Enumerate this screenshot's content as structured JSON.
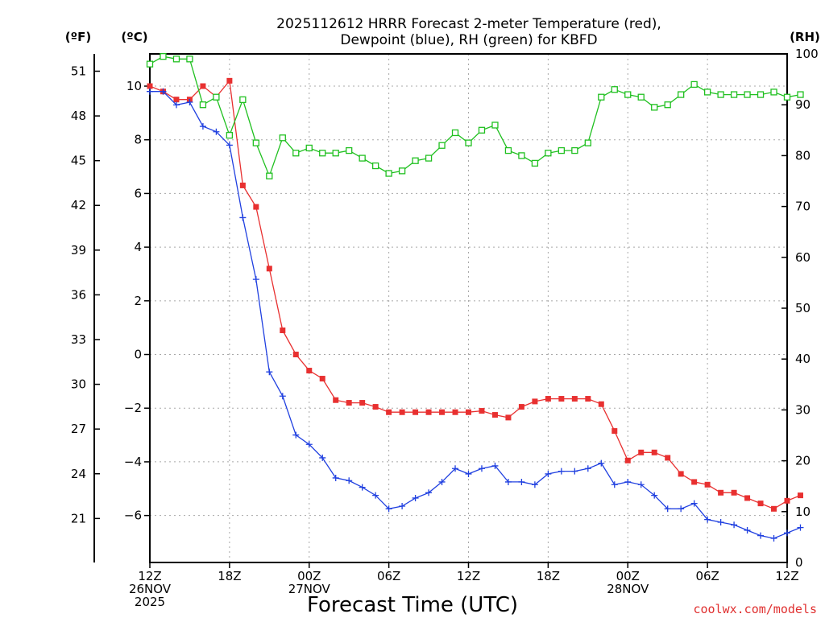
{
  "chart_data": {
    "type": "line",
    "title_line1": "2025112612 HRRR Forecast 2-meter Temperature (red),",
    "title_line2": "Dewpoint (blue), RH (green) for KBFD",
    "unit_f": "(ºF)",
    "unit_c": "(ºC)",
    "unit_rh": "(RH)",
    "xlabel": "Forecast Time (UTC)",
    "credit": "coolwx.com/models",
    "x_range_hours": [
      0,
      48
    ],
    "y_c_range": [
      -7.75,
      11.2
    ],
    "y_rh_range": [
      0,
      100
    ],
    "celsius_ticks": [
      10,
      8,
      6,
      4,
      2,
      0,
      -2,
      -4,
      -6
    ],
    "celsius_tick_labels": [
      "10",
      "8",
      "6",
      "4",
      "2",
      "0",
      "−2",
      "−4",
      "−6"
    ],
    "fahrenheit_ticks": [
      51,
      48,
      45,
      42,
      39,
      36,
      33,
      30,
      27,
      24,
      21
    ],
    "fahrenheit_tick_labels": [
      "51",
      "48",
      "45",
      "42",
      "39",
      "36",
      "33",
      "30",
      "27",
      "24",
      "21"
    ],
    "rh_ticks": [
      100,
      90,
      80,
      70,
      60,
      50,
      40,
      30,
      20,
      10,
      0
    ],
    "rh_tick_labels": [
      "100",
      "90",
      "80",
      "70",
      "60",
      "50",
      "40",
      "30",
      "20",
      "10",
      "0"
    ],
    "x_ticks": [
      {
        "hour": 0,
        "lines": [
          "12Z",
          "26NOV",
          "2025"
        ]
      },
      {
        "hour": 6,
        "lines": [
          "18Z"
        ]
      },
      {
        "hour": 12,
        "lines": [
          "00Z",
          "27NOV"
        ]
      },
      {
        "hour": 18,
        "lines": [
          "06Z"
        ]
      },
      {
        "hour": 24,
        "lines": [
          "12Z"
        ]
      },
      {
        "hour": 30,
        "lines": [
          "18Z"
        ]
      },
      {
        "hour": 36,
        "lines": [
          "00Z",
          "28NOV"
        ]
      },
      {
        "hour": 42,
        "lines": [
          "06Z"
        ]
      },
      {
        "hour": 48,
        "lines": [
          "12Z"
        ]
      }
    ],
    "series": [
      {
        "name": "Temperature",
        "axis": "celsius",
        "color": "#e83030",
        "marker": "filled-square",
        "values": [
          10.0,
          9.8,
          9.5,
          9.5,
          10.0,
          9.6,
          10.2,
          6.3,
          5.5,
          3.2,
          0.9,
          0.0,
          -0.6,
          -0.9,
          -1.7,
          -1.8,
          -1.8,
          -1.95,
          -2.15,
          -2.15,
          -2.15,
          -2.15,
          -2.15,
          -2.15,
          -2.15,
          -2.1,
          -2.25,
          -2.35,
          -1.95,
          -1.75,
          -1.65,
          -1.65,
          -1.65,
          -1.65,
          -1.85,
          -2.85,
          -3.95,
          -3.65,
          -3.65,
          -3.85,
          -4.45,
          -4.75,
          -4.85,
          -5.15,
          -5.15,
          -5.35,
          -5.55,
          -5.75,
          -5.45,
          -5.25
        ]
      },
      {
        "name": "Dewpoint",
        "axis": "celsius",
        "color": "#2040e0",
        "marker": "plus",
        "values": [
          9.8,
          9.8,
          9.3,
          9.4,
          8.5,
          8.3,
          7.8,
          5.1,
          2.8,
          -0.65,
          -1.55,
          -3.0,
          -3.35,
          -3.85,
          -4.6,
          -4.7,
          -4.95,
          -5.25,
          -5.75,
          -5.65,
          -5.35,
          -5.15,
          -4.75,
          -4.25,
          -4.45,
          -4.25,
          -4.15,
          -4.75,
          -4.75,
          -4.85,
          -4.45,
          -4.35,
          -4.35,
          -4.25,
          -4.05,
          -4.85,
          -4.75,
          -4.85,
          -5.25,
          -5.75,
          -5.75,
          -5.55,
          -6.15,
          -6.25,
          -6.35,
          -6.55,
          -6.75,
          -6.85,
          -6.65,
          -6.45
        ]
      },
      {
        "name": "RH",
        "axis": "rh",
        "color": "#20c020",
        "marker": "open-square",
        "values": [
          98,
          99.5,
          99,
          99,
          90,
          91.5,
          84,
          91,
          82.5,
          76,
          83.5,
          80.5,
          81.5,
          80.5,
          80.5,
          81,
          79.5,
          78,
          76.5,
          77,
          79,
          79.5,
          82,
          84.5,
          82.5,
          85,
          86,
          81,
          80,
          78.5,
          80.5,
          81,
          81,
          82.5,
          91.5,
          93,
          92,
          91.5,
          89.5,
          90,
          92,
          94,
          92.5,
          92,
          92,
          92,
          92,
          92.5,
          91.5,
          92
        ]
      }
    ]
  }
}
